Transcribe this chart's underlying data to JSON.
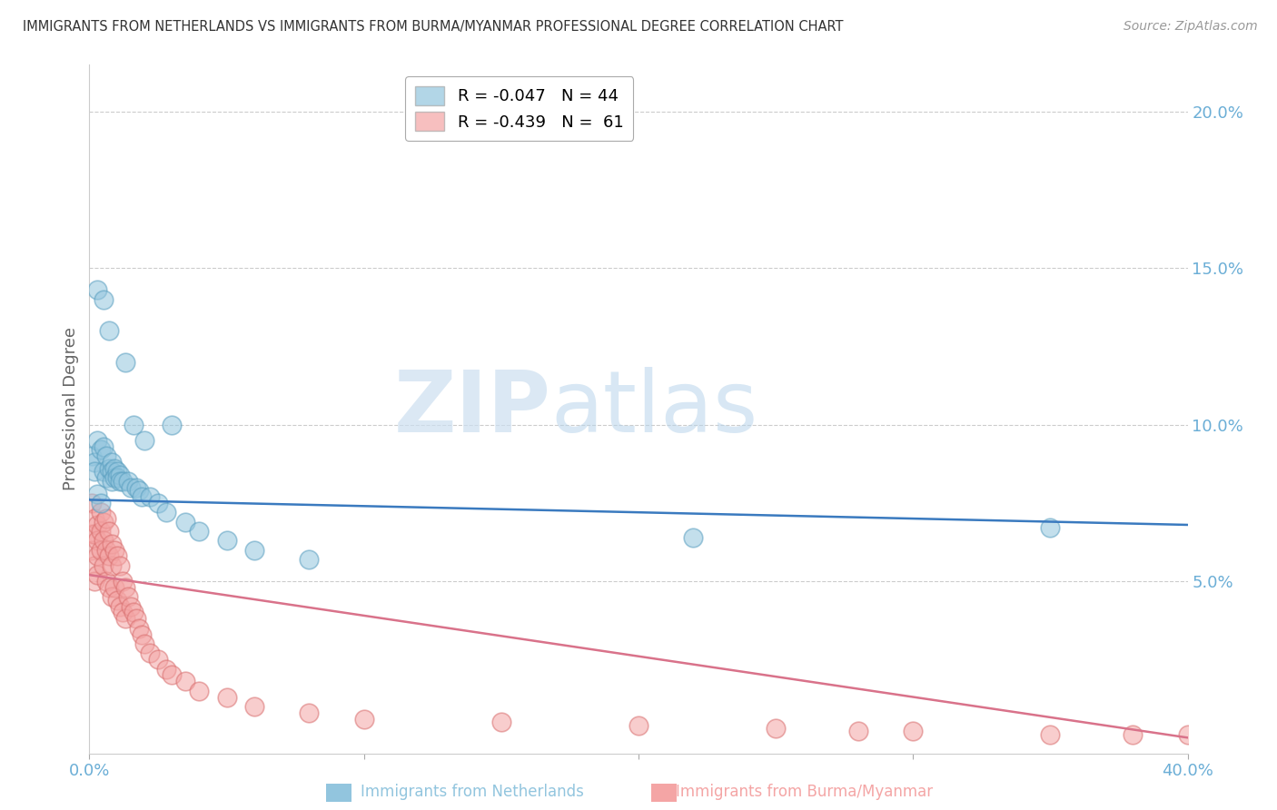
{
  "title": "IMMIGRANTS FROM NETHERLANDS VS IMMIGRANTS FROM BURMA/MYANMAR PROFESSIONAL DEGREE CORRELATION CHART",
  "source": "Source: ZipAtlas.com",
  "ylabel": "Professional Degree",
  "ylabel_right_ticks": [
    "20.0%",
    "15.0%",
    "10.0%",
    "5.0%"
  ],
  "ylabel_right_values": [
    0.2,
    0.15,
    0.1,
    0.05
  ],
  "xmin": 0.0,
  "xmax": 0.4,
  "ymin": -0.005,
  "ymax": 0.215,
  "watermark_zip": "ZIP",
  "watermark_atlas": "atlas",
  "nl_color": "#92c5de",
  "mm_color": "#f4a5a5",
  "nl_edge_color": "#5a9fc0",
  "mm_edge_color": "#d97070",
  "nl_line_color": "#3a7abf",
  "mm_line_color": "#d9728a",
  "background_color": "#ffffff",
  "grid_color": "#cccccc",
  "title_color": "#333333",
  "axis_tick_color": "#6baed6",
  "nl_line_x0": 0.0,
  "nl_line_x1": 0.4,
  "nl_line_y0": 0.076,
  "nl_line_y1": 0.068,
  "mm_line_x0": 0.0,
  "mm_line_x1": 0.4,
  "mm_line_y0": 0.052,
  "mm_line_y1": 0.0,
  "nl_scatter_x": [
    0.001,
    0.002,
    0.002,
    0.003,
    0.003,
    0.003,
    0.004,
    0.004,
    0.005,
    0.005,
    0.005,
    0.006,
    0.006,
    0.007,
    0.007,
    0.008,
    0.008,
    0.008,
    0.009,
    0.009,
    0.01,
    0.01,
    0.011,
    0.011,
    0.012,
    0.013,
    0.014,
    0.015,
    0.016,
    0.017,
    0.018,
    0.019,
    0.02,
    0.022,
    0.025,
    0.028,
    0.03,
    0.035,
    0.04,
    0.05,
    0.06,
    0.08,
    0.22,
    0.35
  ],
  "nl_scatter_y": [
    0.09,
    0.088,
    0.085,
    0.143,
    0.095,
    0.078,
    0.092,
    0.075,
    0.093,
    0.085,
    0.14,
    0.09,
    0.083,
    0.13,
    0.086,
    0.088,
    0.085,
    0.082,
    0.086,
    0.083,
    0.085,
    0.083,
    0.084,
    0.082,
    0.082,
    0.12,
    0.082,
    0.08,
    0.1,
    0.08,
    0.079,
    0.077,
    0.095,
    0.077,
    0.075,
    0.072,
    0.1,
    0.069,
    0.066,
    0.063,
    0.06,
    0.057,
    0.064,
    0.067
  ],
  "mm_scatter_x": [
    0.001,
    0.001,
    0.001,
    0.002,
    0.002,
    0.002,
    0.002,
    0.003,
    0.003,
    0.003,
    0.003,
    0.004,
    0.004,
    0.004,
    0.005,
    0.005,
    0.005,
    0.006,
    0.006,
    0.006,
    0.007,
    0.007,
    0.007,
    0.008,
    0.008,
    0.008,
    0.009,
    0.009,
    0.01,
    0.01,
    0.011,
    0.011,
    0.012,
    0.012,
    0.013,
    0.013,
    0.014,
    0.015,
    0.016,
    0.017,
    0.018,
    0.019,
    0.02,
    0.022,
    0.025,
    0.028,
    0.03,
    0.035,
    0.04,
    0.05,
    0.06,
    0.08,
    0.1,
    0.15,
    0.2,
    0.25,
    0.28,
    0.3,
    0.35,
    0.38,
    0.4
  ],
  "mm_scatter_y": [
    0.065,
    0.06,
    0.075,
    0.07,
    0.065,
    0.055,
    0.05,
    0.068,
    0.063,
    0.058,
    0.052,
    0.072,
    0.066,
    0.06,
    0.069,
    0.063,
    0.055,
    0.07,
    0.06,
    0.05,
    0.066,
    0.058,
    0.048,
    0.062,
    0.055,
    0.045,
    0.06,
    0.048,
    0.058,
    0.044,
    0.055,
    0.042,
    0.05,
    0.04,
    0.048,
    0.038,
    0.045,
    0.042,
    0.04,
    0.038,
    0.035,
    0.033,
    0.03,
    0.027,
    0.025,
    0.022,
    0.02,
    0.018,
    0.015,
    0.013,
    0.01,
    0.008,
    0.006,
    0.005,
    0.004,
    0.003,
    0.002,
    0.002,
    0.001,
    0.001,
    0.001
  ]
}
